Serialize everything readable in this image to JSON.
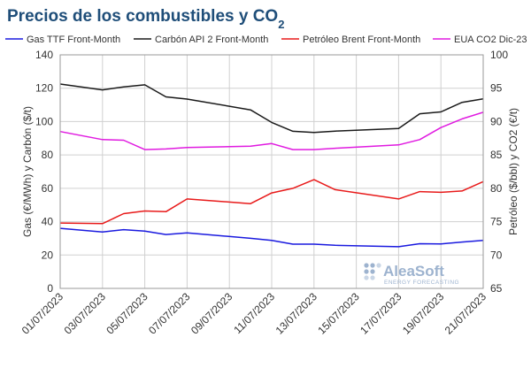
{
  "title": {
    "main": "Precios de los combustibles y CO",
    "subscript": "2"
  },
  "watermark": {
    "name": "AleaSoft",
    "tagline": "ENERGY FORECASTING"
  },
  "chart_data": {
    "type": "line",
    "title": "Precios de los combustibles y CO2",
    "x": [
      "01/07/2023",
      "03/07/2023",
      "04/07/2023",
      "05/07/2023",
      "06/07/2023",
      "07/07/2023",
      "10/07/2023",
      "11/07/2023",
      "12/07/2023",
      "13/07/2023",
      "14/07/2023",
      "17/07/2023",
      "18/07/2023",
      "19/07/2023",
      "20/07/2023",
      "21/07/2023"
    ],
    "x_positions": [
      0,
      2,
      3,
      4,
      5,
      6,
      9,
      10,
      11,
      12,
      13,
      16,
      17,
      18,
      19,
      20
    ],
    "xticks": [
      "01/07/2023",
      "03/07/2023",
      "05/07/2023",
      "07/07/2023",
      "09/07/2023",
      "11/07/2023",
      "13/07/2023",
      "15/07/2023",
      "17/07/2023",
      "19/07/2023",
      "21/07/2023"
    ],
    "xlim": [
      0,
      20
    ],
    "y_left": {
      "label": "Gas (€/MWh) y Carbón ($/t)",
      "lim": [
        0,
        140
      ],
      "ticks": [
        0,
        20,
        40,
        60,
        80,
        100,
        120,
        140
      ]
    },
    "y_right": {
      "label": "Petróleo ($/bbl) y CO2 (€/t)",
      "lim": [
        65,
        100
      ],
      "ticks": [
        65,
        70,
        75,
        80,
        85,
        90,
        95,
        100
      ]
    },
    "grid": true,
    "legend_position": "top",
    "series": [
      {
        "name": "Gas TTF Front-Month",
        "axis": "left",
        "color": "#1a1adf",
        "values": [
          36.0,
          33.8,
          35.2,
          34.3,
          32.3,
          33.3,
          30.0,
          28.8,
          26.5,
          26.5,
          25.8,
          25.0,
          26.8,
          26.7,
          27.8,
          28.8
        ]
      },
      {
        "name": "Carbón API 2 Front-Month",
        "axis": "left",
        "color": "#1a1a1a",
        "values": [
          122.5,
          119.0,
          120.8,
          122.0,
          114.8,
          113.5,
          107.0,
          99.5,
          94.2,
          93.5,
          94.3,
          95.9,
          104.7,
          105.8,
          111.5,
          113.6
        ]
      },
      {
        "name": "Petróleo Brent Front-Month",
        "axis": "right",
        "color": "#e81a1a",
        "values": [
          74.8,
          74.7,
          76.2,
          76.6,
          76.5,
          78.4,
          77.7,
          79.3,
          80.0,
          81.3,
          79.8,
          78.4,
          79.5,
          79.4,
          79.6,
          81.0
        ]
      },
      {
        "name": "EUA CO2 Dic-23",
        "axis": "right",
        "color": "#e01ae0",
        "values": [
          88.5,
          87.3,
          87.2,
          85.8,
          85.9,
          86.1,
          86.3,
          86.7,
          85.8,
          85.8,
          86.0,
          86.5,
          87.3,
          89.1,
          90.4,
          91.4
        ]
      }
    ]
  }
}
